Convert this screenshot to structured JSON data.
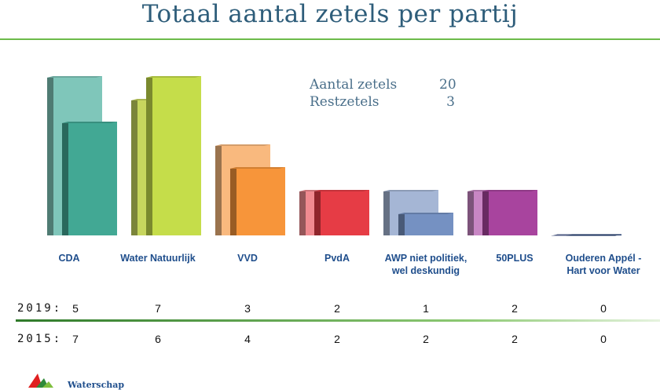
{
  "title": "Totaal aantal zetels per partij",
  "summary": {
    "seats_label": "Aantal zetels",
    "seats_value": "20",
    "rest_label": "Restzetels",
    "rest_value": "3"
  },
  "table": {
    "label_2019": "2019:",
    "label_2015": "2015:"
  },
  "logo": {
    "text": "Waterschap"
  },
  "chart_data": {
    "type": "bar",
    "title": "Totaal aantal zetels per partij",
    "categories": [
      "CDA",
      "Water Natuurlijk",
      "VVD",
      "PvdA",
      "AWP niet politiek, wel deskundig",
      "50PLUS",
      "Ouderen Appél - Hart voor Water"
    ],
    "series": [
      {
        "name": "2015",
        "values": [
          7,
          6,
          4,
          2,
          2,
          2,
          0
        ],
        "colors": [
          "#7fc6ba",
          "#c7d65e",
          "#f9b97e",
          "#f08a90",
          "#a5b6d5",
          "#c886c4",
          "#5a6a9a"
        ]
      },
      {
        "name": "2019",
        "values": [
          5,
          7,
          3,
          2,
          1,
          2,
          0
        ],
        "colors": [
          "#42a894",
          "#c5dd4a",
          "#f7953a",
          "#e63c45",
          "#7591c2",
          "#a8449e",
          "#1f3a6e"
        ]
      }
    ],
    "ylim": [
      0,
      7.5
    ],
    "grid": false,
    "legend": "none"
  }
}
